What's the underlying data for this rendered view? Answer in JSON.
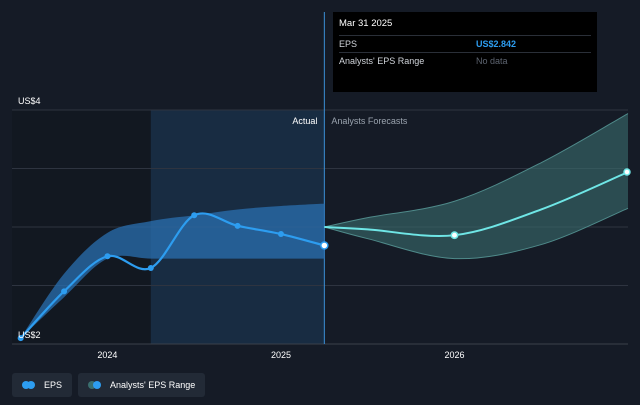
{
  "tooltip": {
    "date": "Mar 31 2025",
    "rows": [
      {
        "label": "EPS",
        "value": "US$2.842",
        "style": "eps"
      },
      {
        "label": "Analysts' EPS Range",
        "value": "No data",
        "style": "nodata"
      }
    ]
  },
  "legend": [
    {
      "label": "EPS",
      "color": "#2d9df0",
      "color2": "#2d9df0"
    },
    {
      "label": "Analysts' EPS Range",
      "color": "#3a6e6e",
      "color2": "#2d9df0"
    }
  ],
  "colors": {
    "background": "#151b26",
    "eps_line": "#2d9df0",
    "forecast_line": "#6fe6e6",
    "past_range": "#2a6fb0",
    "forecast_range": "#3a6e6e",
    "actual_highlight": "#1b3a5a",
    "grid": "#2e3440"
  },
  "chart_data": {
    "type": "line",
    "ylim": [
      2,
      4
    ],
    "y_ticks": [
      {
        "value": 4,
        "label": "US$4"
      },
      {
        "value": 2,
        "label": "US$2"
      }
    ],
    "x_ticks": [
      {
        "value": 2024.0,
        "label": "2024"
      },
      {
        "value": 2025.0,
        "label": "2025"
      },
      {
        "value": 2026.0,
        "label": "2026"
      }
    ],
    "xlim": [
      2023.45,
      2027.0
    ],
    "region_labels": {
      "actual": "Actual",
      "forecast": "Analysts Forecasts"
    },
    "divider_x": 2025.25,
    "past_highlight_start": 2024.25,
    "series": [
      {
        "name": "EPS",
        "points": [
          {
            "x": 2023.5,
            "y": 2.05
          },
          {
            "x": 2023.75,
            "y": 2.45
          },
          {
            "x": 2024.0,
            "y": 2.75
          },
          {
            "x": 2024.25,
            "y": 2.65
          },
          {
            "x": 2024.5,
            "y": 3.1
          },
          {
            "x": 2024.75,
            "y": 3.01
          },
          {
            "x": 2025.0,
            "y": 2.94
          },
          {
            "x": 2025.25,
            "y": 2.842
          }
        ]
      },
      {
        "name": "EPS forecast",
        "points": [
          {
            "x": 2025.25,
            "y": 3.0
          },
          {
            "x": 2025.5,
            "y": 2.98
          },
          {
            "x": 2026.0,
            "y": 2.93
          },
          {
            "x": 2026.5,
            "y": 3.15
          },
          {
            "x": 2027.0,
            "y": 3.47
          }
        ],
        "marked": [
          2026.0
        ]
      }
    ],
    "past_range": {
      "x": [
        2023.5,
        2023.75,
        2024.0,
        2024.25,
        2024.5,
        2024.75,
        2025.0,
        2025.25
      ],
      "high": [
        2.05,
        2.6,
        2.95,
        3.05,
        3.1,
        3.15,
        3.18,
        3.2
      ],
      "low": [
        2.05,
        2.4,
        2.73,
        2.73,
        2.73,
        2.73,
        2.73,
        2.73
      ]
    },
    "forecast_range": {
      "x": [
        2025.25,
        2025.5,
        2026.0,
        2026.5,
        2027.0
      ],
      "high": [
        3.0,
        3.08,
        3.22,
        3.55,
        3.97
      ],
      "low": [
        3.0,
        2.9,
        2.73,
        2.85,
        3.16
      ]
    }
  }
}
